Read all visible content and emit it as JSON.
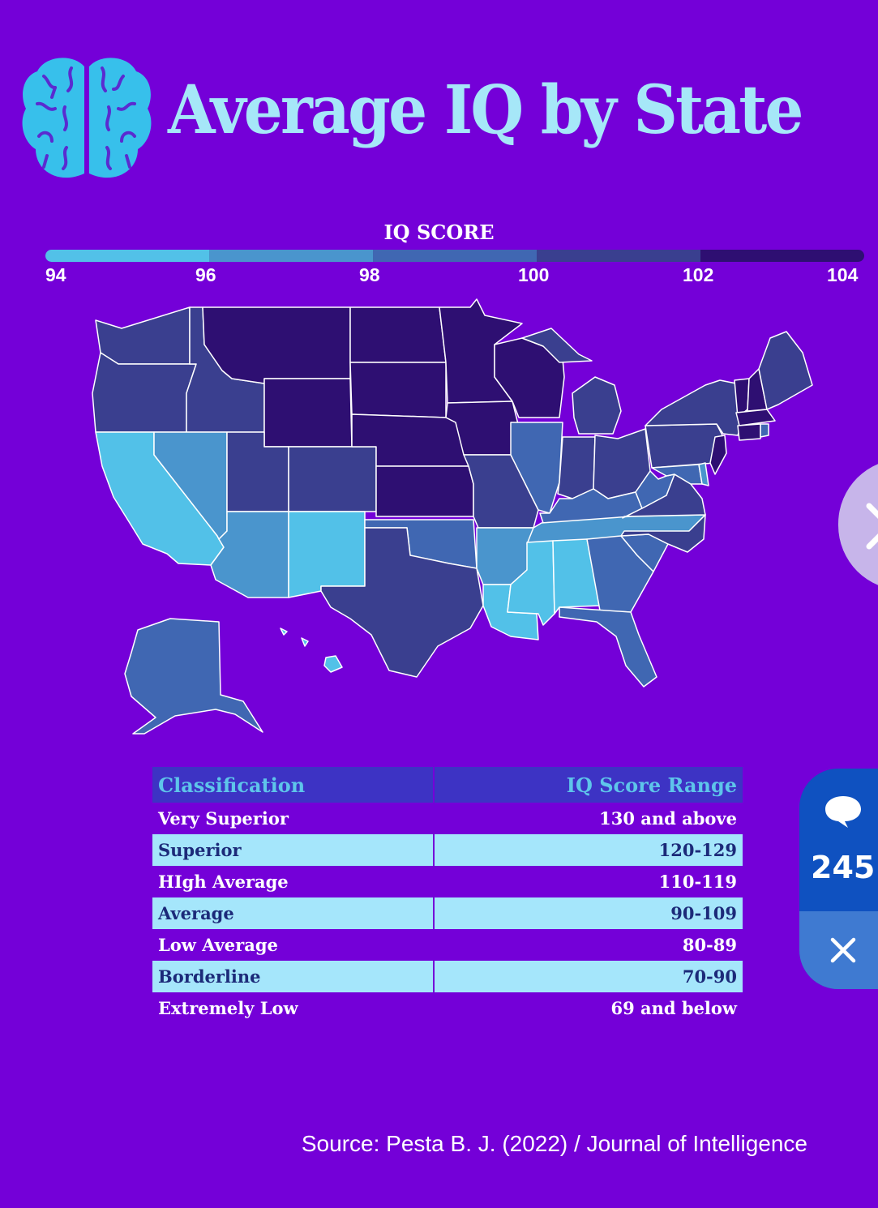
{
  "title": "Average IQ by State",
  "legend": {
    "title": "IQ SCORE",
    "ticks": [
      "94",
      "96",
      "98",
      "100",
      "102",
      "104"
    ],
    "colors": [
      "#52c1e8",
      "#4a95cd",
      "#4067b2",
      "#3a3f8f",
      "#2e0f72"
    ]
  },
  "map": {
    "icon": "us-states-choropleth",
    "bins": {
      "94-96": [
        "California",
        "New Mexico",
        "Louisiana",
        "Mississippi",
        "Alabama",
        "Hawaii"
      ],
      "96-98": [
        "Nevada",
        "Arizona",
        "Arkansas",
        "Tennessee"
      ],
      "98-100": [
        "Oklahoma",
        "Illinois",
        "Kentucky",
        "West Virginia",
        "Georgia",
        "South Carolina",
        "Florida",
        "Alaska",
        "Maryland",
        "Delaware",
        "Rhode Island"
      ],
      "100-102": [
        "Washington",
        "Oregon",
        "Idaho",
        "Utah",
        "Colorado",
        "Texas",
        "Missouri",
        "Indiana",
        "Michigan",
        "Ohio",
        "Virginia",
        "North Carolina",
        "Pennsylvania",
        "New York",
        "Maine",
        "New Jersey"
      ],
      "102-104": [
        "Montana",
        "Wyoming",
        "North Dakota",
        "South Dakota",
        "Nebraska",
        "Kansas",
        "Minnesota",
        "Iowa",
        "Wisconsin",
        "Vermont",
        "New Hampshire",
        "Massachusetts",
        "Connecticut"
      ]
    }
  },
  "table": {
    "headers": [
      "Classification",
      "IQ Score Range"
    ],
    "rows": [
      [
        "Very Superior",
        "130 and above"
      ],
      [
        "Superior",
        "120-129"
      ],
      [
        "HIgh Average",
        "110-119"
      ],
      [
        "Average",
        "90-109"
      ],
      [
        "Low Average",
        "80-89"
      ],
      [
        "Borderline",
        "70-90"
      ],
      [
        "Extremely Low",
        "69 and below"
      ]
    ]
  },
  "source": "Source: Pesta B. J. (2022) / Journal of Intelligence",
  "ui": {
    "comment_count": "245",
    "comment_icon": "speech-bubble-icon",
    "close_icon": "close-icon"
  }
}
